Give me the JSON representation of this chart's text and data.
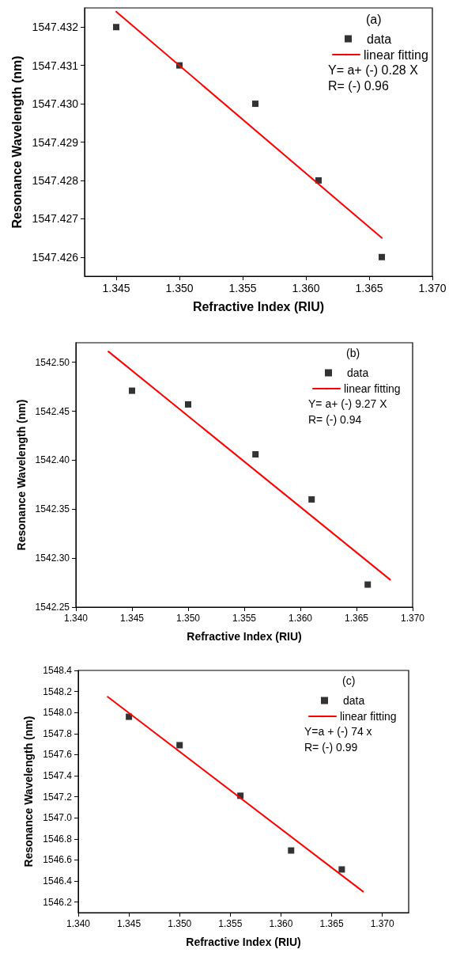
{
  "chart_data": [
    {
      "type": "scatter",
      "xlabel": "Refractive Index (RIU)",
      "ylabel": "Resonance Wavelength (nm)",
      "annotations": [
        "(a)",
        "Y= a+ (-) 0.28 X",
        "R= (-) 0.96"
      ],
      "xlim": [
        1.3425,
        1.37
      ],
      "ylim": [
        1547.4255,
        1547.4325
      ],
      "xticks": [
        1.345,
        {
          "value": 1.35,
          "label": "1.350"
        },
        1.355,
        {
          "value": 1.36,
          "label": "1.360"
        },
        1.365,
        {
          "value": 1.37,
          "label": "1.370"
        }
      ],
      "yticks": [
        1547.426,
        1547.427,
        1547.428,
        1547.429,
        {
          "value": 1547.43,
          "label": "1547.430"
        },
        1547.431,
        1547.432
      ],
      "grid": false,
      "legend": "top right",
      "marker": "square",
      "series": [
        {
          "name": "data",
          "type": "scatter",
          "color": "#000000",
          "x": [
            1.345,
            1.35,
            1.356,
            1.361,
            1.366
          ],
          "values": [
            1547.432,
            1547.431,
            1547.43,
            1547.428,
            1547.426
          ]
        },
        {
          "name": "linear fitting",
          "type": "line",
          "color": "#ff0000",
          "marker": "none",
          "line_style": "solid",
          "x": [
            1.345,
            1.366
          ],
          "values": [
            1547.4324,
            1547.4265
          ]
        }
      ]
    },
    {
      "type": "scatter",
      "xlabel": "Refractive Index (RIU)",
      "ylabel": "Resonance Wavelength (nm)",
      "annotations": [
        "(b)",
        "Y= a+ (-) 9.27 X",
        "R= (-) 0.94"
      ],
      "xlim": [
        1.34,
        1.37
      ],
      "ylim": [
        1542.25,
        1542.52
      ],
      "xticks": [
        {
          "value": 1.34,
          "label": "1.340"
        },
        1.345,
        {
          "value": 1.35,
          "label": "1.350"
        },
        1.355,
        {
          "value": 1.36,
          "label": "1.360"
        },
        1.365,
        {
          "value": 1.37,
          "label": "1.370"
        }
      ],
      "yticks": [
        1542.25,
        {
          "value": 1542.3,
          "label": "1542.30"
        },
        1542.35,
        {
          "value": 1542.4,
          "label": "1542.40"
        },
        1542.45,
        {
          "value": 1542.5,
          "label": "1542.50"
        }
      ],
      "grid": false,
      "legend": "top right",
      "marker": "square",
      "series": [
        {
          "name": "data",
          "type": "scatter",
          "color": "#000000",
          "x": [
            1.345,
            1.35,
            1.356,
            1.361,
            1.366
          ],
          "values": [
            1542.471,
            1542.457,
            1542.406,
            1542.36,
            1542.273
          ]
        },
        {
          "name": "linear fitting",
          "type": "line",
          "color": "#ff0000",
          "marker": "none",
          "line_style": "solid",
          "x": [
            1.3429,
            1.368
          ],
          "values": [
            1542.511,
            1542.278
          ]
        }
      ]
    },
    {
      "type": "scatter",
      "xlabel": "Refractive Index (RIU)",
      "ylabel": "Resonance Wavelength (nm)",
      "annotations": [
        "(c)",
        "Y=a + (-) 74 x",
        "R= (-) 0.99"
      ],
      "xlim": [
        1.34,
        1.3726
      ],
      "ylim": [
        1546.1,
        1548.4
      ],
      "xticks": [
        {
          "value": 1.34,
          "label": "1.340"
        },
        1.345,
        {
          "value": 1.35,
          "label": "1.350"
        },
        1.355,
        {
          "value": 1.36,
          "label": "1.360"
        },
        1.365,
        {
          "value": 1.37,
          "label": "1.370"
        }
      ],
      "yticks": [
        1546.2,
        1546.4,
        1546.6,
        1546.8,
        {
          "value": 1547,
          "label": "1547.0"
        },
        1547.2,
        1547.4,
        1547.6,
        1547.8,
        {
          "value": 1548,
          "label": "1548.0"
        },
        1548.2,
        1548.4
      ],
      "grid": false,
      "legend": "top right",
      "marker": "square",
      "series": [
        {
          "name": "data",
          "type": "scatter",
          "color": "#000000",
          "x": [
            1.345,
            1.35,
            1.356,
            1.361,
            1.366
          ],
          "values": [
            1547.96,
            1547.69,
            1547.21,
            1546.69,
            1546.51
          ]
        },
        {
          "name": "linear fitting",
          "type": "line",
          "color": "#ff0000",
          "marker": "none",
          "line_style": "solid",
          "x": [
            1.3429,
            1.3681
          ],
          "values": [
            1548.15,
            1546.3
          ]
        }
      ]
    }
  ]
}
